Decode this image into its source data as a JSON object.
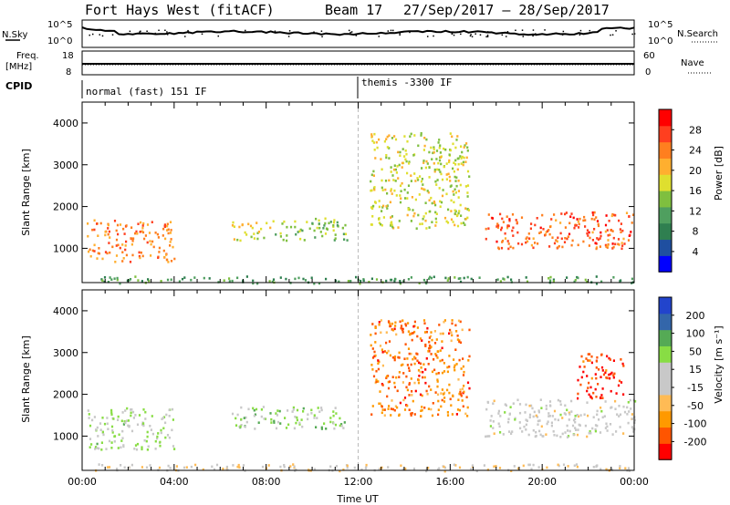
{
  "header": {
    "station": "Fort Hays West (fitACF)",
    "beam": "Beam 17",
    "dates": "27/Sep/2017 – 28/Sep/2017"
  },
  "status_panels": {
    "nsky_label": "N.Sky",
    "nsky_ticks": [
      "10^5",
      "10^0"
    ],
    "nsearch_label": "N.Search",
    "nsearch_ticks": [
      "10^5",
      "10^0"
    ],
    "freq_label": "Freq.",
    "freq_unit": "[MHz]",
    "freq_ticks": [
      "18",
      "8"
    ],
    "nave_label": "Nave",
    "nave_ticks": [
      "60",
      "0"
    ],
    "cpid_label": "CPID",
    "cpid_segments": [
      {
        "label": "normal (fast) 151 IF",
        "start_hour": 0
      },
      {
        "label": "themis -3300 IF",
        "start_hour": 12
      }
    ]
  },
  "colors": {
    "power_scale": [
      "#0000ff",
      "#1f4fa0",
      "#2f7f50",
      "#4f9f5f",
      "#7fbf3f",
      "#dfdf2f",
      "#ffaf2f",
      "#ff7f1f",
      "#ff3f1f",
      "#ff0000"
    ],
    "velocity_scale": [
      "#ff0000",
      "#ff5500",
      "#ff9900",
      "#ffbb55",
      "#c8c8c8",
      "#c8c8c8",
      "#88dd44",
      "#55aa55",
      "#3366aa",
      "#2244cc"
    ]
  },
  "chart_data": [
    {
      "type": "heatmap",
      "title": "",
      "xlabel": "",
      "ylabel": "Slant Range [km]",
      "x_ticks": [
        "00:00",
        "04:00",
        "08:00",
        "12:00",
        "16:00",
        "20:00",
        "00:00"
      ],
      "xlim_hours": [
        0,
        24
      ],
      "ylim_km": [
        180,
        4500
      ],
      "y_ticks": [
        1000,
        2000,
        3000,
        4000
      ],
      "colorbar": {
        "label": "Power [dB]",
        "ticks": [
          4,
          8,
          12,
          16,
          20,
          24,
          28
        ],
        "range": [
          0,
          30
        ]
      },
      "echo_regions": [
        {
          "t0": 0.2,
          "t1": 4.0,
          "r0": 700,
          "r1": 1700,
          "value": 22
        },
        {
          "t0": 6.5,
          "t1": 8.2,
          "r0": 1200,
          "r1": 1650,
          "value": 18
        },
        {
          "t0": 8.2,
          "t1": 11.5,
          "r0": 1200,
          "r1": 1750,
          "value": 14
        },
        {
          "t0": 12.5,
          "t1": 16.8,
          "r0": 1500,
          "r1": 3800,
          "value": 16
        },
        {
          "t0": 17.5,
          "t1": 24.0,
          "r0": 1000,
          "r1": 1900,
          "value": 24
        },
        {
          "t0": 0.0,
          "t1": 24.0,
          "r0": 180,
          "r1": 350,
          "value": 10
        }
      ]
    },
    {
      "type": "heatmap",
      "title": "",
      "xlabel": "Time UT",
      "ylabel": "Slant Range [km]",
      "x_ticks": [
        "00:00",
        "04:00",
        "08:00",
        "12:00",
        "16:00",
        "20:00",
        "00:00"
      ],
      "xlim_hours": [
        0,
        24
      ],
      "ylim_km": [
        180,
        4500
      ],
      "y_ticks": [
        1000,
        2000,
        3000,
        4000
      ],
      "colorbar": {
        "label": "Velocity [m s⁻¹]",
        "ticks": [
          -200,
          -100,
          -50,
          -15,
          15,
          50,
          100,
          200
        ],
        "range": [
          -250,
          250
        ]
      },
      "echo_regions": [
        {
          "t0": 0.2,
          "t1": 4.0,
          "r0": 700,
          "r1": 1700,
          "value": 40
        },
        {
          "t0": 6.5,
          "t1": 11.5,
          "r0": 1200,
          "r1": 1750,
          "value": 60
        },
        {
          "t0": 12.5,
          "t1": 16.8,
          "r0": 1500,
          "r1": 3800,
          "value": -150
        },
        {
          "t0": 17.5,
          "t1": 24.0,
          "r0": 1000,
          "r1": 1900,
          "value": 0
        },
        {
          "t0": 21.5,
          "t1": 23.5,
          "r0": 1900,
          "r1": 3000,
          "value": -200
        },
        {
          "t0": 0.0,
          "t1": 24.0,
          "r0": 180,
          "r1": 350,
          "value": -40
        }
      ]
    }
  ]
}
